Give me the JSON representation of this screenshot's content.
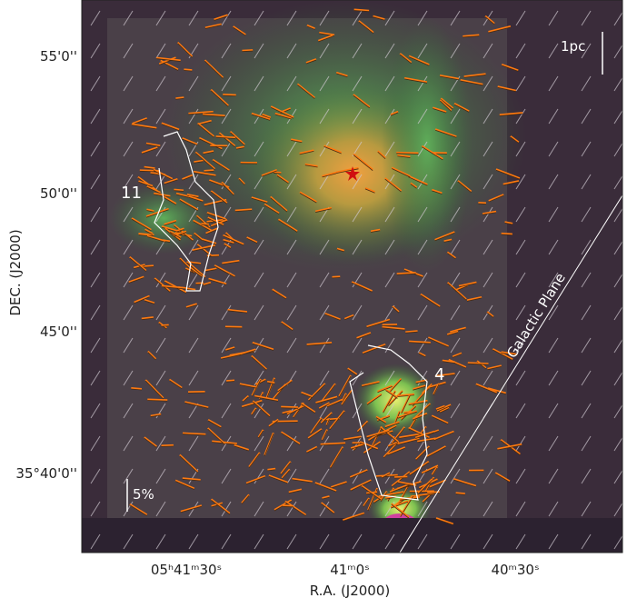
{
  "figure": {
    "y_axis": {
      "label": "DEC. (J2000)",
      "ticks": [
        "55'0''",
        "50'0''",
        "45'0''",
        "35°40'0''"
      ]
    },
    "x_axis": {
      "label": "R.A. (J2000)",
      "ticks": [
        "05ʰ41ᵐ30ˢ",
        "41ᵐ0ˢ",
        "40ᵐ30ˢ"
      ]
    },
    "annotations": {
      "scale_bar": "1pc",
      "vector_scale": "5%",
      "region_a": "11",
      "region_b": "4",
      "plane": "Galactic Plane"
    }
  }
}
